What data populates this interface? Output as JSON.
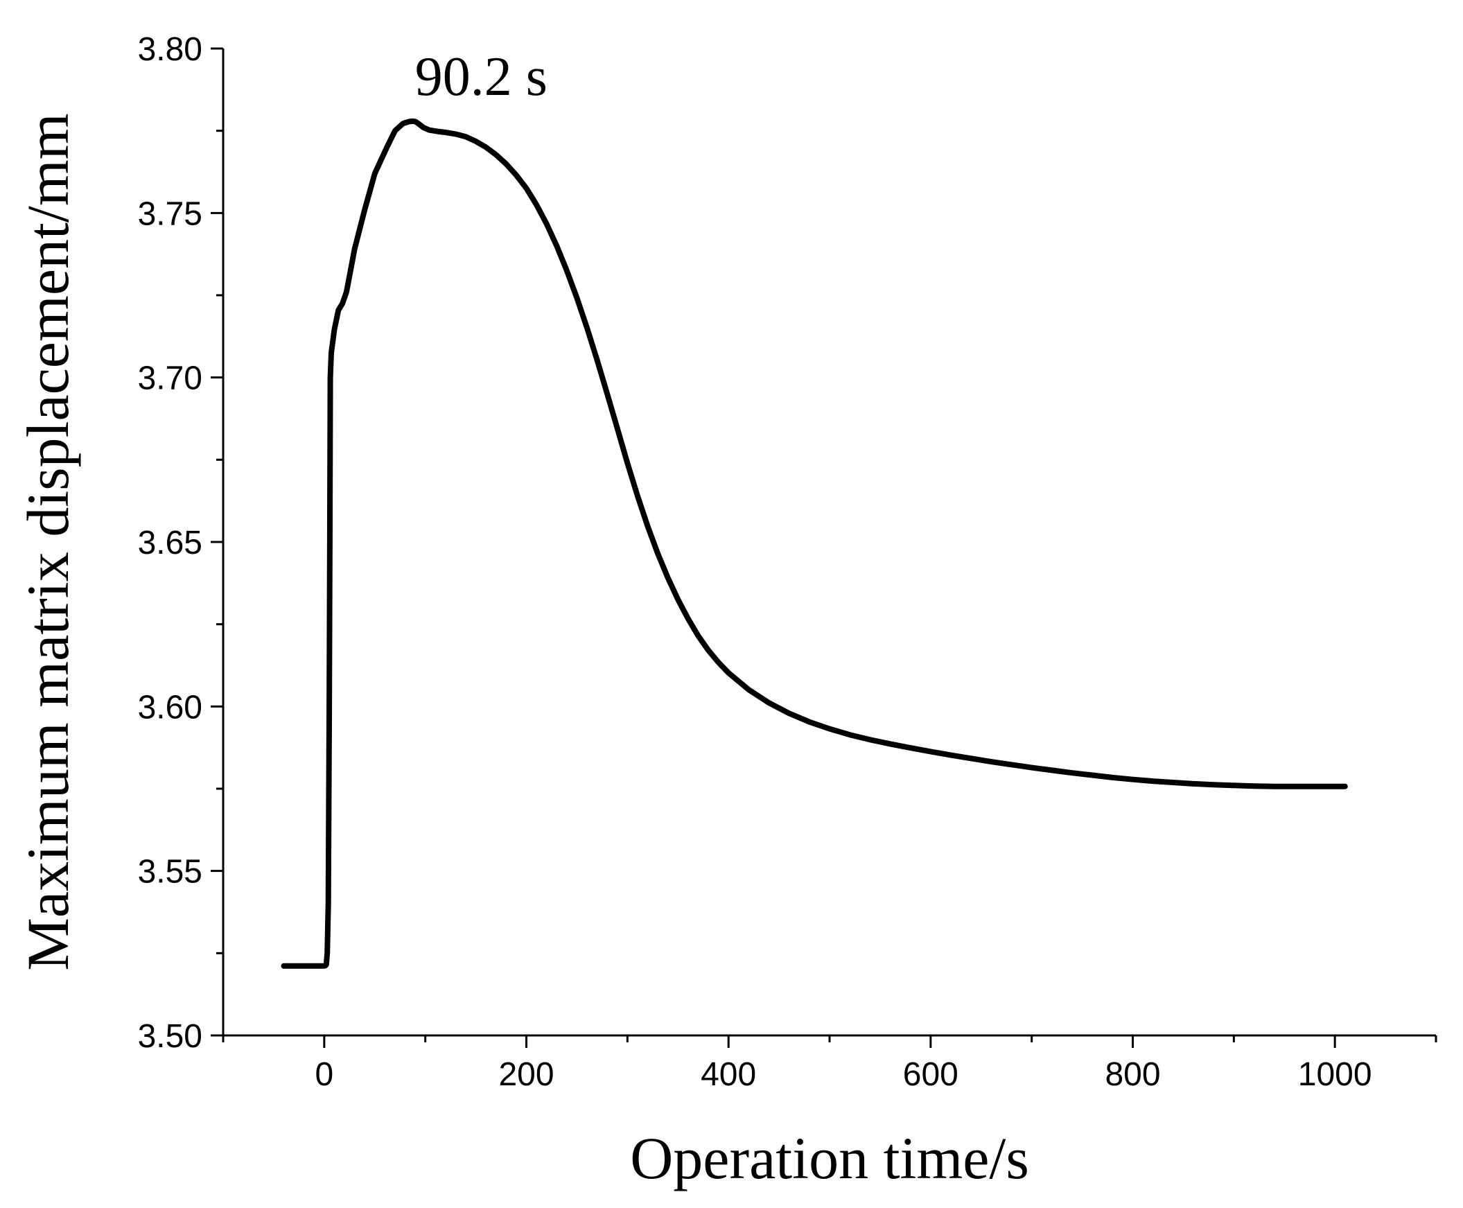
{
  "chart_data": {
    "type": "line",
    "xlabel": "Operation time/s",
    "ylabel": "Maximum matrix displacement/mm",
    "xlim": [
      -100,
      1100
    ],
    "ylim": [
      3.5,
      3.8
    ],
    "xticks": [
      0,
      200,
      400,
      600,
      800,
      1000
    ],
    "xtick_labels": [
      "0",
      "200",
      "400",
      "600",
      "800",
      "1000"
    ],
    "yticks": [
      3.5,
      3.55,
      3.6,
      3.65,
      3.7,
      3.75,
      3.8
    ],
    "ytick_labels": [
      "3.50",
      "3.55",
      "3.60",
      "3.65",
      "3.70",
      "3.75",
      "3.80"
    ],
    "grid": false,
    "annotations": [
      {
        "text": "90.2 s",
        "x": 90.2,
        "y": 3.7775
      }
    ],
    "series": [
      {
        "color": "#000000",
        "x": [
          -40,
          -20,
          0,
          1,
          2,
          3,
          4,
          5,
          5.5,
          6,
          7,
          10,
          14,
          18,
          22,
          26,
          30,
          40,
          50,
          56,
          62,
          70,
          78,
          84,
          88,
          90.2,
          93,
          98,
          104,
          112,
          120,
          130,
          140,
          150,
          160,
          170,
          180,
          190,
          200,
          210,
          220,
          230,
          240,
          250,
          260,
          270,
          280,
          290,
          300,
          310,
          320,
          330,
          340,
          350,
          360,
          370,
          380,
          390,
          400,
          420,
          440,
          460,
          480,
          500,
          520,
          540,
          560,
          580,
          600,
          620,
          640,
          660,
          680,
          700,
          720,
          740,
          760,
          780,
          800,
          820,
          840,
          860,
          880,
          900,
          920,
          940,
          960,
          980,
          1000,
          1010
        ],
        "y": [
          3.5211,
          3.5211,
          3.5211,
          3.5212,
          3.5215,
          3.525,
          3.54,
          3.6,
          3.65,
          3.7,
          3.7075,
          3.7145,
          3.7205,
          3.7225,
          3.726,
          3.7325,
          3.739,
          3.751,
          3.762,
          3.766,
          3.77,
          3.775,
          3.7772,
          3.7778,
          3.7779,
          3.7778,
          3.7772,
          3.776,
          3.7752,
          3.7748,
          3.7745,
          3.774,
          3.7732,
          3.7718,
          3.77,
          3.7677,
          3.7649,
          3.7615,
          3.7575,
          3.7525,
          3.7467,
          3.74,
          3.7325,
          3.7242,
          3.7151,
          3.7053,
          3.695,
          3.6845,
          3.674,
          3.664,
          3.6548,
          3.6465,
          3.6391,
          3.6325,
          3.6267,
          3.6215,
          3.6171,
          3.6134,
          3.6102,
          3.6051,
          3.6011,
          3.5979,
          3.5953,
          3.5932,
          3.5914,
          3.5899,
          3.5886,
          3.5874,
          3.5863,
          3.5852,
          3.5842,
          3.5832,
          3.5823,
          3.5814,
          3.5806,
          3.5798,
          3.5791,
          3.5784,
          3.5778,
          3.5773,
          3.5769,
          3.5765,
          3.5762,
          3.576,
          3.5758,
          3.5757,
          3.5757,
          3.5757,
          3.5757,
          3.5757
        ]
      }
    ]
  }
}
